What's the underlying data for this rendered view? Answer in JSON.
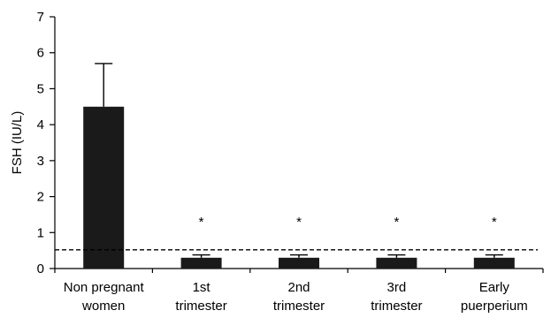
{
  "chart_data": {
    "type": "bar",
    "ylabel": "FSH (IU/L)",
    "ylim": [
      0,
      7
    ],
    "yticks": [
      "0",
      "1",
      "2",
      "3",
      "4",
      "5",
      "6",
      "7"
    ],
    "categories": [
      [
        "Non pregnant",
        "women"
      ],
      [
        "1st",
        "trimester"
      ],
      [
        "2nd",
        "trimester"
      ],
      [
        "3rd",
        "trimester"
      ],
      [
        "Early",
        "puerperium"
      ]
    ],
    "values": [
      4.5,
      0.3,
      0.3,
      0.3,
      0.3
    ],
    "error_upper": [
      5.7,
      0.38,
      0.38,
      0.38,
      0.38
    ],
    "markers": [
      "",
      "*",
      "*",
      "*",
      "*"
    ],
    "reference_line": 0.52,
    "bar_color": "#1a1a1a",
    "grid": false,
    "legend": "none"
  }
}
